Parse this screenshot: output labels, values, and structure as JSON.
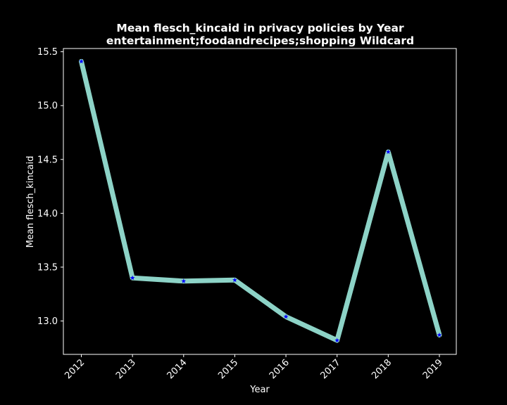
{
  "chart_data": {
    "type": "line",
    "title": "Mean flesch_kincaid in privacy policies by Year",
    "subtitle": "entertainment;foodandrecipes;shopping Wildcard",
    "xlabel": "Year",
    "ylabel": "Mean flesch_kincaid",
    "x": [
      "2012",
      "2013",
      "2014",
      "2015",
      "2016",
      "2017",
      "2018",
      "2019"
    ],
    "series": [
      {
        "values": [
          15.41,
          13.4,
          13.37,
          13.38,
          13.04,
          12.82,
          14.57,
          12.87
        ]
      }
    ],
    "yticks": [
      "13.0",
      "13.5",
      "14.0",
      "14.5",
      "15.0",
      "15.5"
    ],
    "ylim": [
      12.69,
      15.53
    ],
    "grid": false,
    "line_color": "#8dd3c7",
    "marker_color": "#0000ff",
    "marker": "star"
  }
}
